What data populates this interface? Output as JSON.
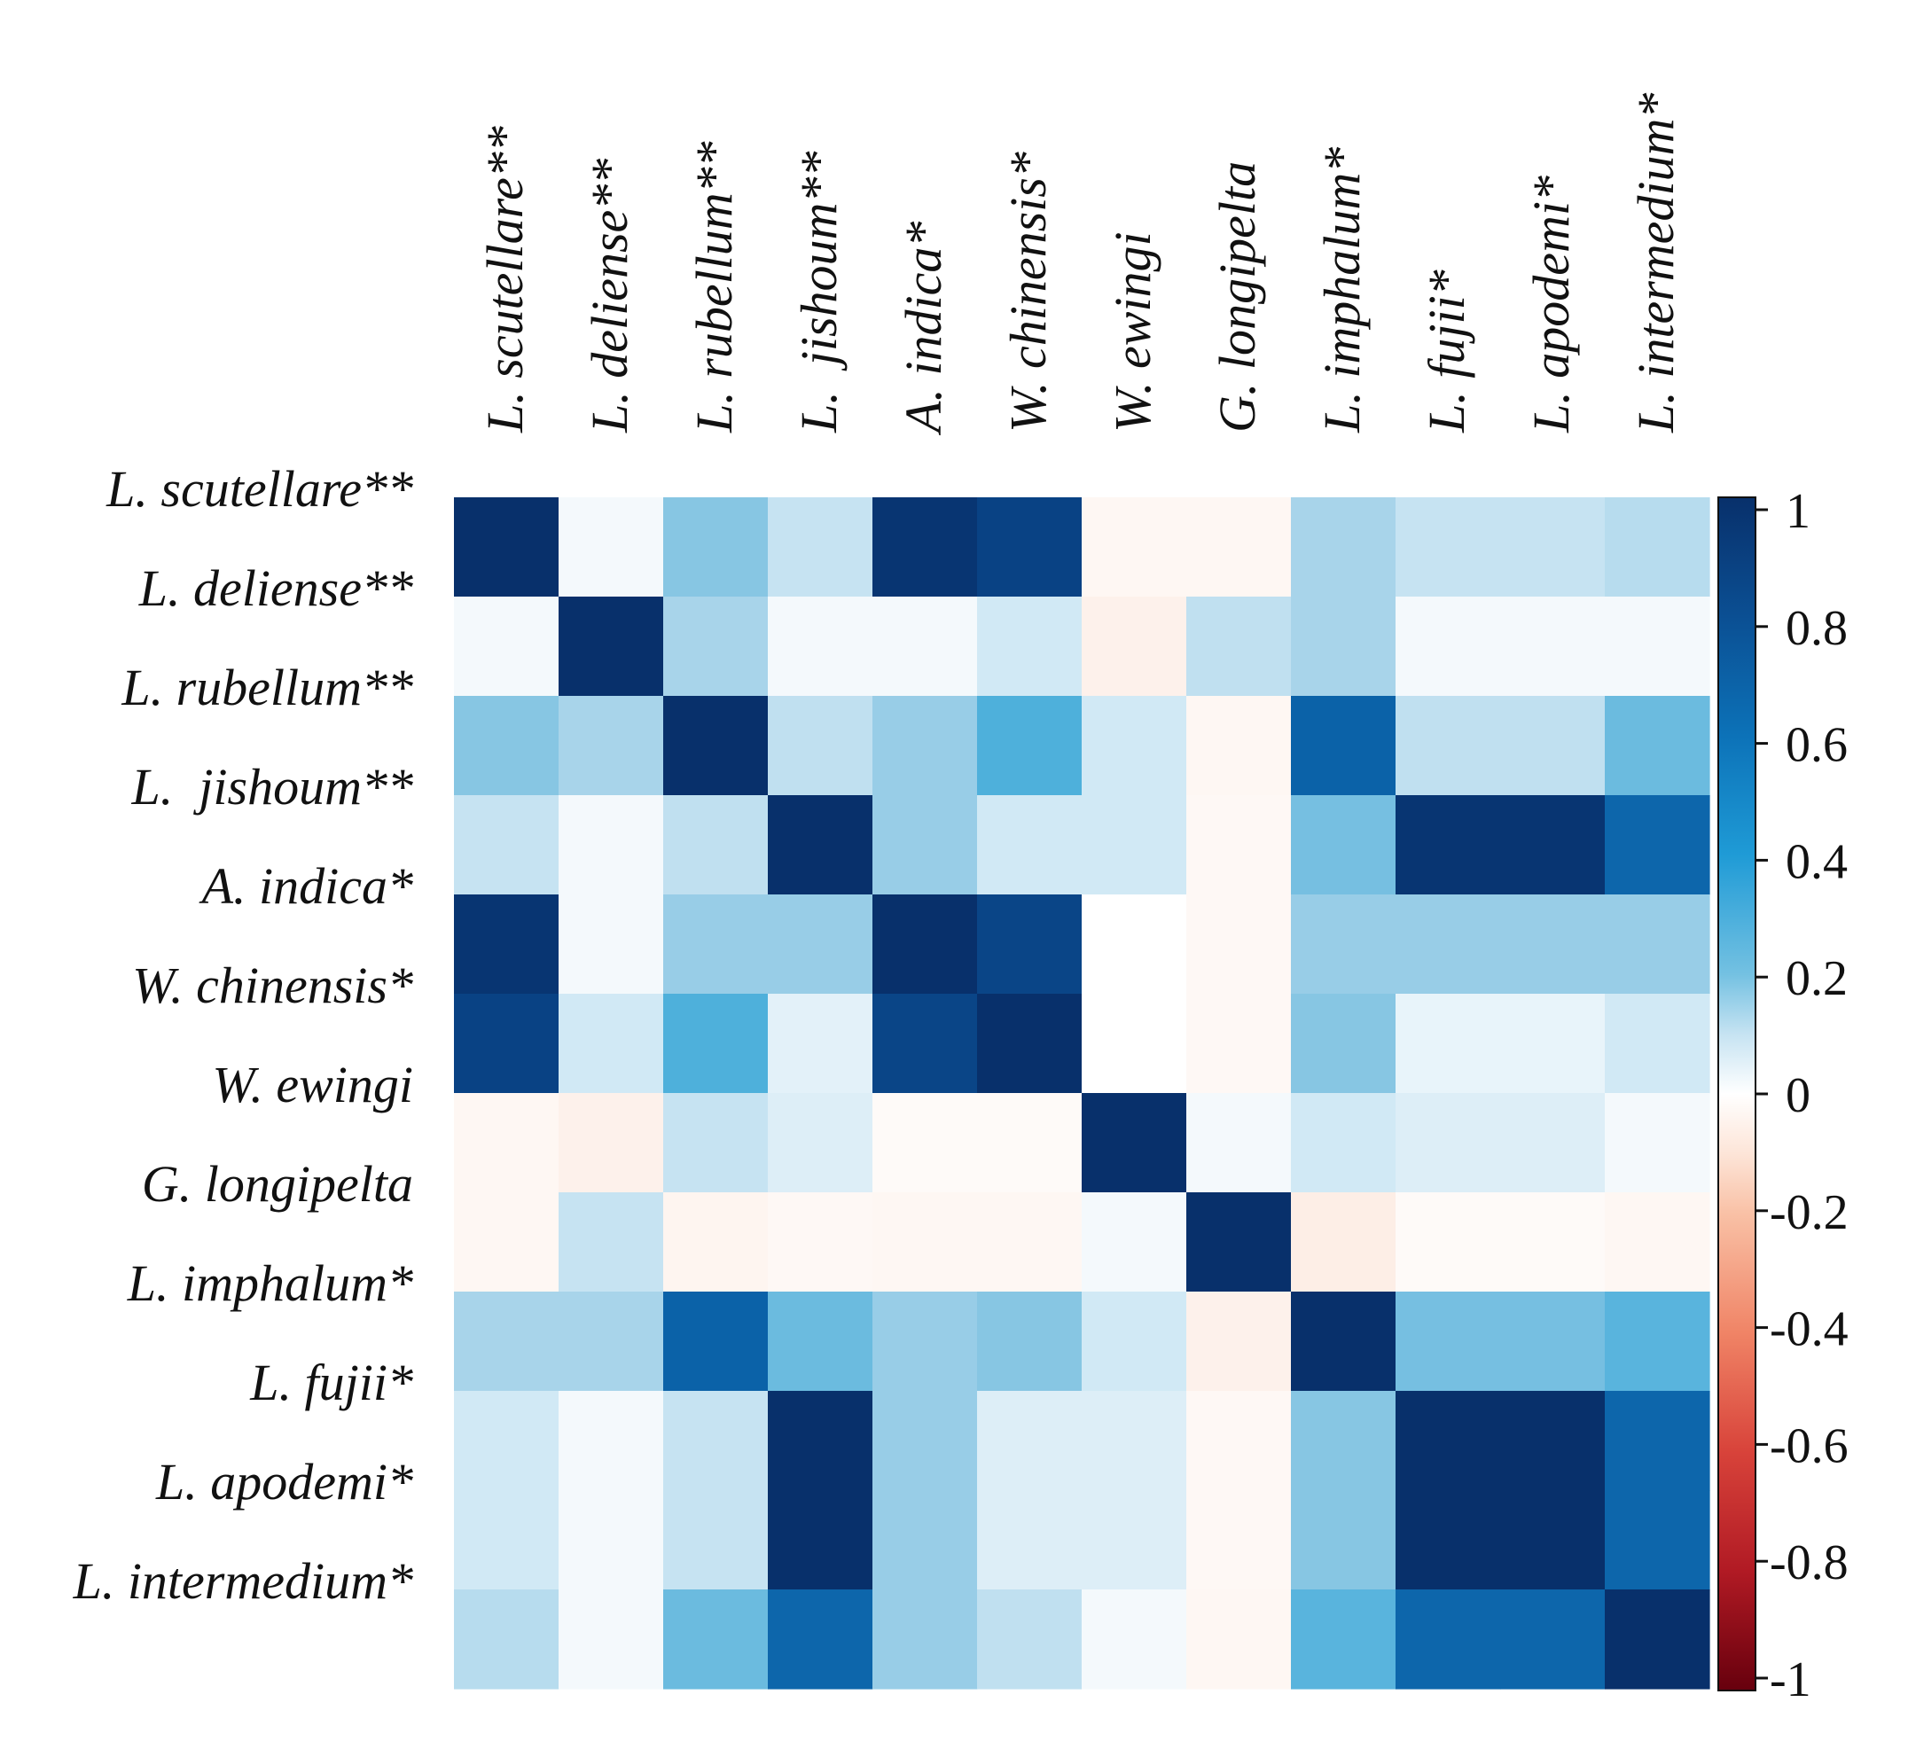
{
  "chart_data": {
    "type": "heatmap",
    "title": "",
    "labels": [
      "L. scutellare**",
      "L. deliense**",
      "L. rubellum**",
      "L.  jishoum**",
      "A. indica*",
      "W. chinensis*",
      "W. ewingi",
      "G. longipelta",
      "L. imphalum*",
      "L. fujii*",
      "L. apodemi*",
      "L. intermedium*"
    ],
    "matrix": [
      [
        1.0,
        0.02,
        0.3,
        0.1,
        0.98,
        0.93,
        -0.05,
        -0.05,
        0.2,
        0.1,
        0.1,
        0.15
      ],
      [
        0.02,
        1.0,
        0.2,
        0.02,
        0.02,
        0.08,
        -0.08,
        0.12,
        0.2,
        0.02,
        0.02,
        0.02
      ],
      [
        0.3,
        0.2,
        1.0,
        0.12,
        0.25,
        0.4,
        0.08,
        -0.05,
        0.8,
        0.12,
        0.12,
        0.35
      ],
      [
        0.1,
        0.02,
        0.12,
        1.0,
        0.25,
        0.08,
        0.08,
        -0.04,
        0.33,
        0.98,
        0.98,
        0.78
      ],
      [
        0.98,
        0.02,
        0.25,
        0.25,
        1.0,
        0.92,
        0.0,
        -0.04,
        0.25,
        0.25,
        0.25,
        0.25
      ],
      [
        0.93,
        0.08,
        0.4,
        0.05,
        0.92,
        1.0,
        0.0,
        -0.04,
        0.3,
        0.04,
        0.04,
        0.08
      ],
      [
        -0.05,
        -0.08,
        0.1,
        0.06,
        -0.03,
        -0.03,
        1.0,
        0.02,
        0.08,
        0.06,
        0.06,
        0.02
      ],
      [
        -0.05,
        0.1,
        -0.06,
        -0.04,
        -0.05,
        -0.05,
        0.02,
        1.0,
        -0.1,
        -0.03,
        -0.03,
        -0.05
      ],
      [
        0.2,
        0.2,
        0.8,
        0.35,
        0.25,
        0.3,
        0.08,
        -0.08,
        1.0,
        0.33,
        0.33,
        0.38
      ],
      [
        0.08,
        0.02,
        0.1,
        1.0,
        0.25,
        0.06,
        0.06,
        -0.04,
        0.3,
        1.0,
        1.0,
        0.78
      ],
      [
        0.08,
        0.02,
        0.1,
        1.0,
        0.25,
        0.06,
        0.06,
        -0.04,
        0.3,
        1.0,
        1.0,
        0.78
      ],
      [
        0.15,
        0.02,
        0.35,
        0.78,
        0.25,
        0.12,
        0.02,
        -0.05,
        0.38,
        0.78,
        0.78,
        1.0
      ]
    ],
    "colorbar": {
      "ticks": [
        "1",
        "0.8",
        "0.6",
        "0.4",
        "0.2",
        "0",
        "-0.2",
        "-0.4",
        "-0.6",
        "-0.8",
        "-1"
      ],
      "range": [
        -1,
        1
      ]
    }
  }
}
